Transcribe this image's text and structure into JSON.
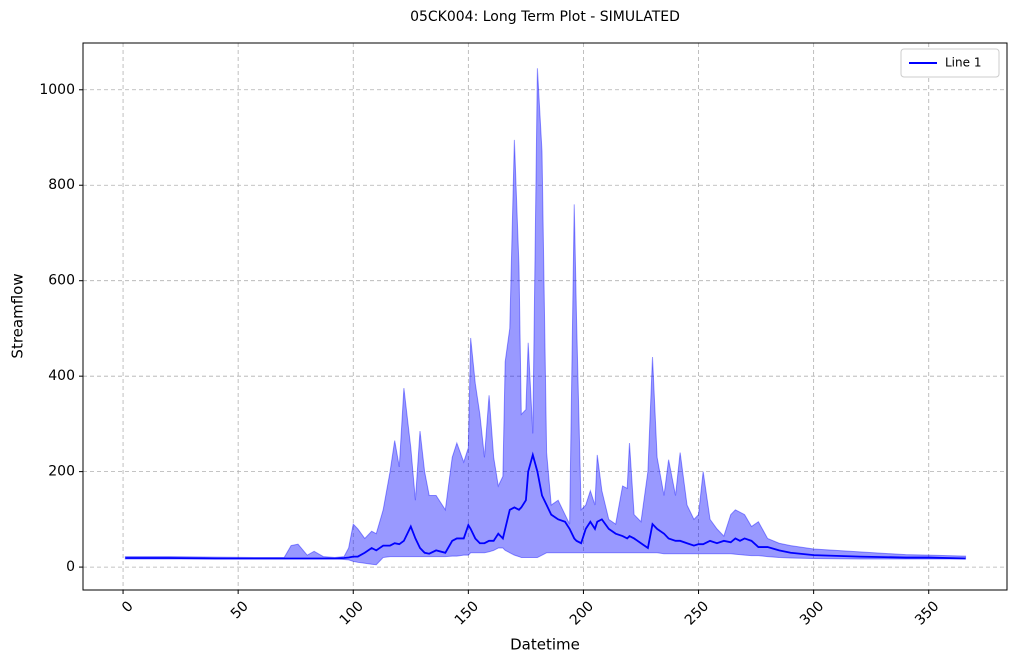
{
  "chart_data": {
    "type": "line",
    "title": "05CK004: Long Term Plot - SIMULATED",
    "x_label": "Datetime",
    "y_label": "Streamflow",
    "x": [
      1,
      20,
      40,
      60,
      70,
      73,
      76,
      80,
      83,
      87,
      92,
      96,
      98,
      100,
      102,
      105,
      108,
      110,
      113,
      116,
      118,
      120,
      122,
      125,
      127,
      129,
      131,
      133,
      136,
      140,
      143,
      145,
      148,
      150,
      151,
      153,
      155,
      157,
      159,
      161,
      163,
      165,
      166,
      168,
      170,
      172,
      173,
      175,
      176,
      178,
      180,
      182,
      184,
      186,
      189,
      192,
      194,
      196,
      197,
      199,
      201,
      203,
      205,
      206,
      208,
      211,
      214,
      217,
      219,
      220,
      222,
      225,
      228,
      230,
      232,
      235,
      237,
      240,
      242,
      245,
      248,
      250,
      252,
      255,
      258,
      261,
      264,
      266,
      268,
      270,
      273,
      276,
      280,
      285,
      290,
      300,
      320,
      340,
      350,
      366
    ],
    "series": [
      {
        "name": "Line 1",
        "color": "#0000ff",
        "values": [
          19,
          19,
          18,
          18,
          18,
          18,
          18,
          18,
          18,
          18,
          18,
          19,
          20,
          22,
          22,
          30,
          40,
          35,
          45,
          45,
          50,
          48,
          55,
          85,
          60,
          40,
          30,
          28,
          35,
          30,
          55,
          60,
          60,
          88,
          80,
          60,
          50,
          50,
          55,
          55,
          70,
          60,
          80,
          120,
          125,
          120,
          125,
          140,
          200,
          235,
          200,
          150,
          130,
          110,
          100,
          95,
          80,
          60,
          55,
          50,
          80,
          95,
          80,
          95,
          100,
          80,
          70,
          65,
          60,
          65,
          60,
          50,
          40,
          90,
          80,
          70,
          60,
          55,
          55,
          50,
          45,
          48,
          48,
          55,
          50,
          55,
          52,
          60,
          55,
          60,
          55,
          42,
          42,
          35,
          30,
          25,
          22,
          20,
          20,
          18
        ]
      }
    ],
    "band": {
      "color": "#0000ff",
      "lower": [
        17,
        17,
        17,
        17,
        17,
        17,
        17,
        17,
        17,
        17,
        17,
        16,
        15,
        12,
        10,
        8,
        6,
        5,
        20,
        22,
        22,
        22,
        22,
        22,
        22,
        22,
        22,
        22,
        22,
        22,
        23,
        23,
        25,
        25,
        30,
        30,
        30,
        30,
        32,
        35,
        40,
        40,
        35,
        30,
        25,
        22,
        20,
        20,
        20,
        20,
        20,
        25,
        30,
        30,
        30,
        30,
        30,
        30,
        30,
        30,
        30,
        30,
        30,
        30,
        30,
        30,
        30,
        30,
        30,
        30,
        30,
        30,
        30,
        30,
        30,
        28,
        28,
        28,
        28,
        28,
        28,
        28,
        28,
        28,
        28,
        28,
        28,
        27,
        26,
        25,
        24,
        24,
        22,
        20,
        19,
        18,
        17,
        17,
        17,
        17
      ],
      "upper": [
        22,
        22,
        21,
        20,
        20,
        45,
        48,
        25,
        33,
        22,
        20,
        22,
        40,
        90,
        80,
        60,
        75,
        70,
        120,
        200,
        265,
        210,
        375,
        250,
        140,
        285,
        200,
        150,
        150,
        120,
        230,
        260,
        220,
        250,
        480,
        385,
        320,
        230,
        360,
        230,
        170,
        190,
        430,
        500,
        895,
        630,
        320,
        330,
        470,
        280,
        1045,
        870,
        240,
        130,
        140,
        110,
        90,
        760,
        520,
        120,
        130,
        160,
        130,
        235,
        160,
        100,
        90,
        170,
        165,
        260,
        110,
        95,
        200,
        440,
        230,
        150,
        225,
        150,
        240,
        130,
        100,
        110,
        200,
        100,
        80,
        65,
        110,
        120,
        115,
        110,
        85,
        95,
        60,
        50,
        45,
        38,
        32,
        26,
        25,
        23
      ]
    },
    "xlim": [
      -17.4,
      384
    ],
    "ylim": [
      -48,
      1098
    ],
    "xticks": [
      0,
      50,
      100,
      150,
      200,
      250,
      300,
      350
    ],
    "yticks": [
      0,
      200,
      400,
      600,
      800,
      1000
    ],
    "grid": true,
    "legend": "upper right"
  }
}
